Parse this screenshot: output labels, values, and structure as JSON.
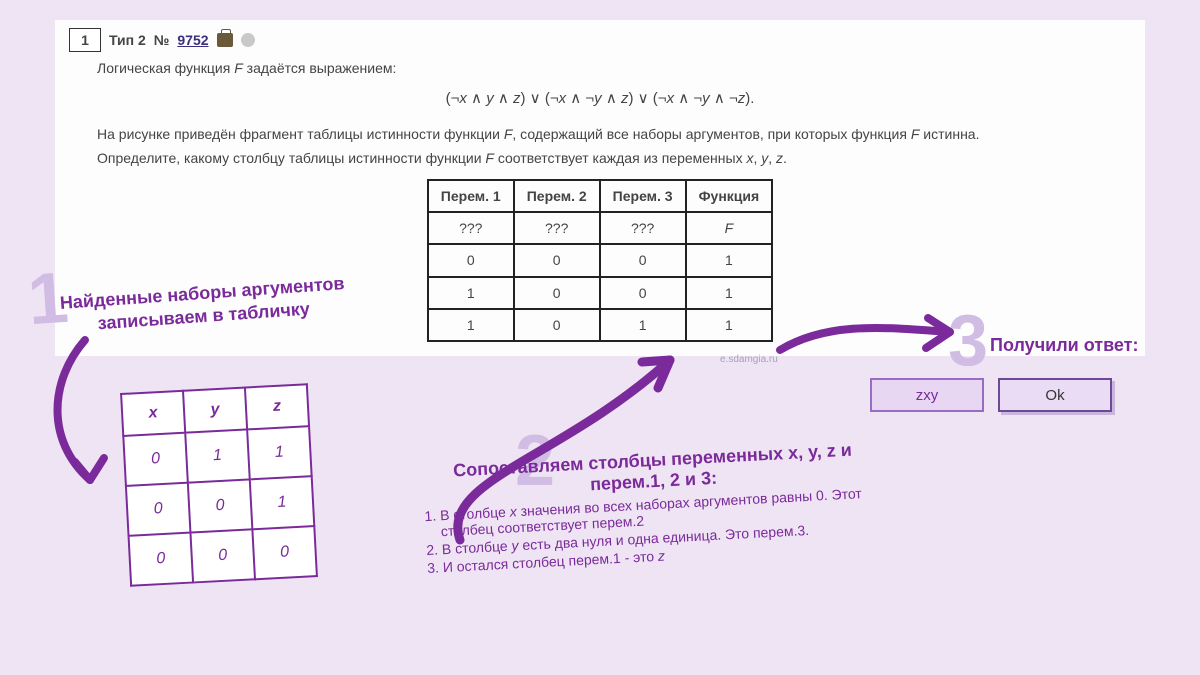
{
  "header": {
    "num": "1",
    "tip": "Тип 2",
    "no_symbol": "№",
    "link": "9752"
  },
  "problem": {
    "intro": "Логическая функция <span class='ital'>F</span> задаётся выражением:",
    "formula": "(¬<span class='ital'>x</span> ∧ <span class='ital'>y</span> ∧ <span class='ital'>z</span>) ∨ (¬<span class='ital'>x</span> ∧ ¬<span class='ital'>y</span> ∧ <span class='ital'>z</span>) ∨ (¬<span class='ital'>x</span> ∧ ¬<span class='ital'>y</span> ∧ ¬<span class='ital'>z</span>).",
    "p2": "На рисунке приведён фрагмент таблицы истинности функции <span class='ital'>F</span>, содержащий все наборы аргументов, при которых функция <span class='ital'>F</span> истинна.",
    "p3": "Определите, какому столбцу таблицы истинности функции <span class='ital'>F</span> соответствует каждая из переменных <span class='ital'>x</span>, <span class='ital'>y</span>, <span class='ital'>z</span>."
  },
  "truth_table": {
    "headers": [
      "Перем. 1",
      "Перем. 2",
      "Перем. 3",
      "Функция"
    ],
    "rows": [
      [
        "???",
        "???",
        "???",
        "<span class='ital'>F</span>"
      ],
      [
        "0",
        "0",
        "0",
        "1"
      ],
      [
        "1",
        "0",
        "0",
        "1"
      ],
      [
        "1",
        "0",
        "1",
        "1"
      ]
    ],
    "watermark": "e.sdamgia.ru"
  },
  "step1": {
    "num": "1",
    "text": "Найденные наборы аргументов записываем в табличку",
    "table": {
      "headers": [
        "x",
        "y",
        "z"
      ],
      "rows": [
        [
          "0",
          "1",
          "1"
        ],
        [
          "0",
          "0",
          "1"
        ],
        [
          "0",
          "0",
          "0"
        ]
      ]
    }
  },
  "step2": {
    "num": "2",
    "title": "Сопоставляем столбцы переменных x, y, z и перем.1, 2 и 3:",
    "items": [
      "В столбце <span class='ital'>x</span> значения во всех наборах аргументов равны 0. Этот столбец соответствует перем.2",
      "В столбце <span class='ital'>y</span> есть два нуля и одна единица. Это перем.3.",
      "И остался столбец перем.1 - это <span class='ital'>z</span>"
    ]
  },
  "step3": {
    "num": "3",
    "title": "Получили ответ:",
    "answer": "zxy",
    "ok": "Ok"
  },
  "colors": {
    "accent": "#7a2a9a",
    "ghost": "#d1bce4"
  }
}
